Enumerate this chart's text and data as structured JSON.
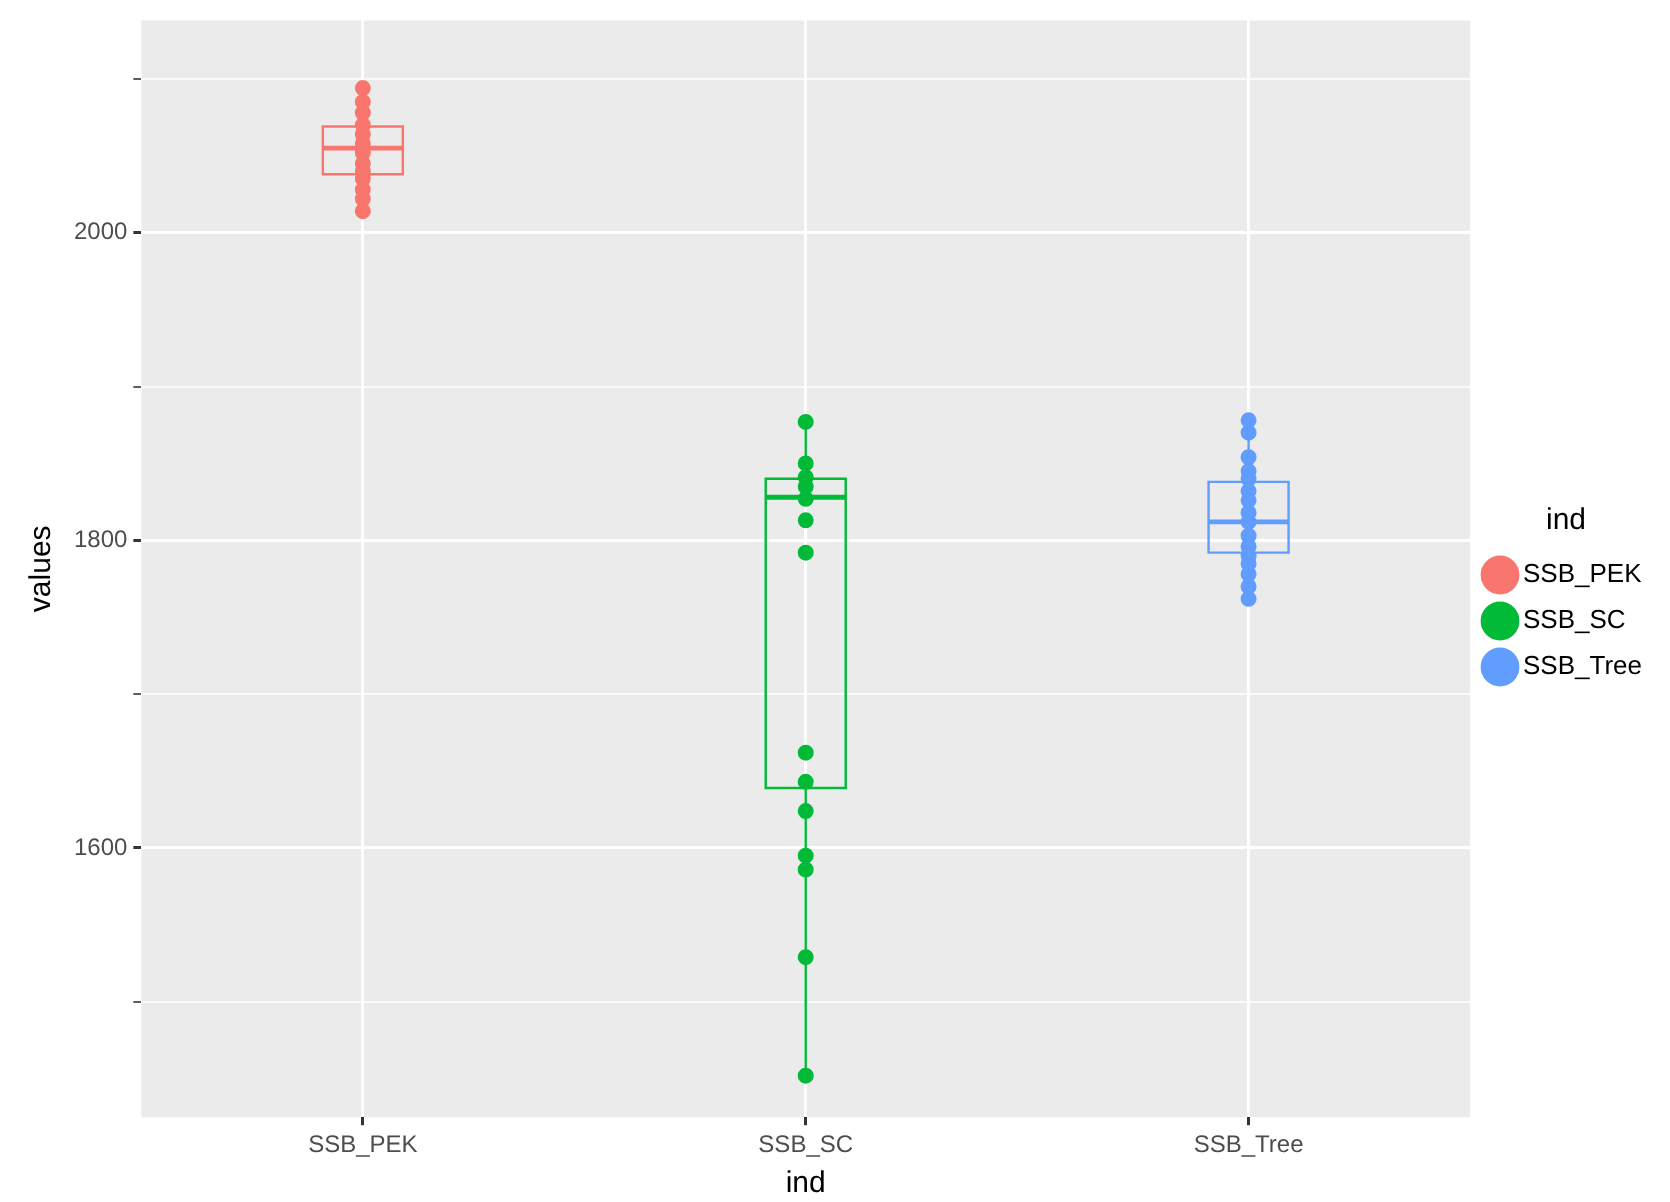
{
  "chart_data": {
    "type": "box",
    "xlabel": "ind",
    "ylabel": "values",
    "legend_title": "ind",
    "legend": "right",
    "grid": true,
    "marker": "circle",
    "categories": [
      "SSB_PEK",
      "SSB_SC",
      "SSB_Tree"
    ],
    "colors": [
      "#f8766d",
      "#00ba38",
      "#619cff"
    ],
    "boxes": [
      {
        "low": 2014,
        "q1": 2038,
        "median": 2055,
        "q3": 2069,
        "high": 2094
      },
      {
        "low": 1452,
        "q1": 1639,
        "median": 1828,
        "q3": 1840,
        "high": 1877
      },
      {
        "low": 1762,
        "q1": 1792,
        "median": 1812,
        "q3": 1838,
        "high": 1878
      }
    ],
    "series": [
      {
        "name": "SSB_PEK",
        "color": "#f8766d",
        "type": "scatter",
        "x": [
          "SSB_PEK",
          "SSB_PEK",
          "SSB_PEK",
          "SSB_PEK",
          "SSB_PEK",
          "SSB_PEK",
          "SSB_PEK",
          "SSB_PEK",
          "SSB_PEK",
          "SSB_PEK",
          "SSB_PEK",
          "SSB_PEK",
          "SSB_PEK"
        ],
        "values": [
          2094,
          2085,
          2078,
          2070,
          2064,
          2058,
          2052,
          2045,
          2040,
          2035,
          2028,
          2022,
          2014
        ]
      },
      {
        "name": "SSB_SC",
        "color": "#00ba38",
        "type": "scatter",
        "x": [
          "SSB_SC",
          "SSB_SC",
          "SSB_SC",
          "SSB_SC",
          "SSB_SC",
          "SSB_SC",
          "SSB_SC",
          "SSB_SC",
          "SSB_SC",
          "SSB_SC",
          "SSB_SC",
          "SSB_SC",
          "SSB_SC",
          "SSB_SC"
        ],
        "values": [
          1877,
          1850,
          1841,
          1835,
          1827,
          1813,
          1792,
          1662,
          1643,
          1624,
          1595,
          1586,
          1529,
          1452
        ]
      },
      {
        "name": "SSB_Tree",
        "color": "#619cff",
        "type": "scatter",
        "x": [
          "SSB_Tree",
          "SSB_Tree",
          "SSB_Tree",
          "SSB_Tree",
          "SSB_Tree",
          "SSB_Tree",
          "SSB_Tree",
          "SSB_Tree",
          "SSB_Tree",
          "SSB_Tree",
          "SSB_Tree",
          "SSB_Tree",
          "SSB_Tree",
          "SSB_Tree",
          "SSB_Tree",
          "SSB_Tree"
        ],
        "values": [
          1878,
          1870,
          1854,
          1845,
          1840,
          1832,
          1826,
          1818,
          1812,
          1803,
          1796,
          1790,
          1785,
          1778,
          1770,
          1762
        ]
      }
    ],
    "ylim": [
      1425,
      2138
    ],
    "yticks": [
      {
        "value": 1500,
        "label": null
      },
      1600,
      {
        "value": 1700,
        "label": null
      },
      1800,
      {
        "value": 1900,
        "label": null
      },
      2000,
      {
        "value": 2100,
        "label": null
      }
    ]
  }
}
